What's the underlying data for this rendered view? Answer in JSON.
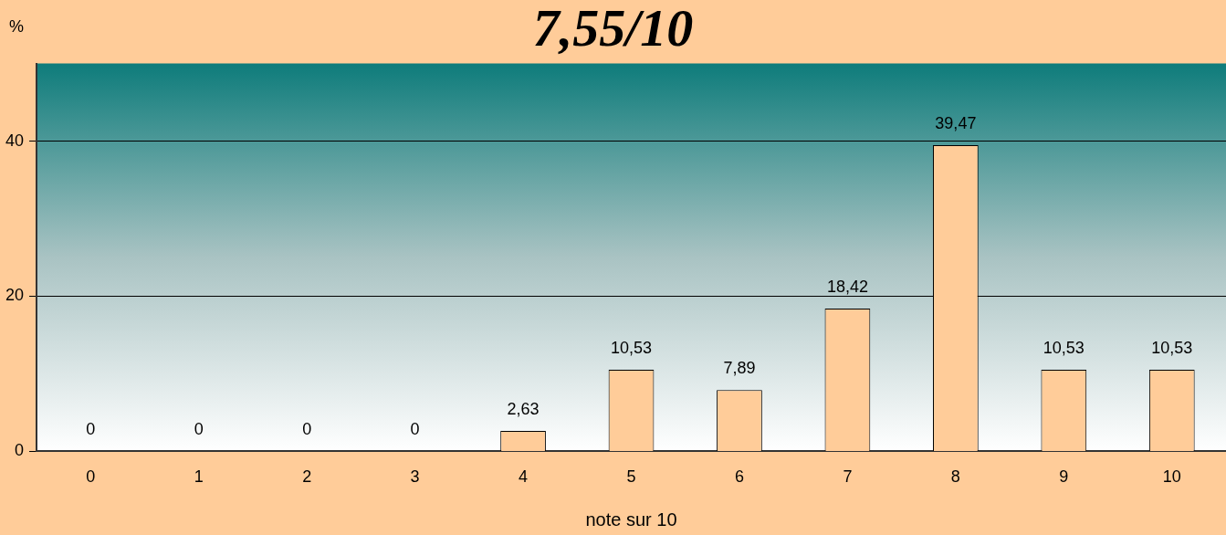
{
  "chart_data": {
    "type": "bar",
    "title": "7,55/10",
    "xlabel": "note sur 10",
    "ylabel": "%",
    "categories": [
      "0",
      "1",
      "2",
      "3",
      "4",
      "5",
      "6",
      "7",
      "8",
      "9",
      "10"
    ],
    "values": [
      0,
      0,
      0,
      0,
      2.63,
      10.53,
      7.89,
      18.42,
      39.47,
      10.53,
      10.53
    ],
    "value_labels": [
      "0",
      "0",
      "0",
      "0",
      "2,63",
      "10,53",
      "7,89",
      "18,42",
      "39,47",
      "10,53",
      "10,53"
    ],
    "color": "#ffcc99",
    "ylim": [
      0,
      50
    ],
    "yticks": [
      0,
      20,
      40
    ],
    "grid": "y",
    "legend": false
  }
}
